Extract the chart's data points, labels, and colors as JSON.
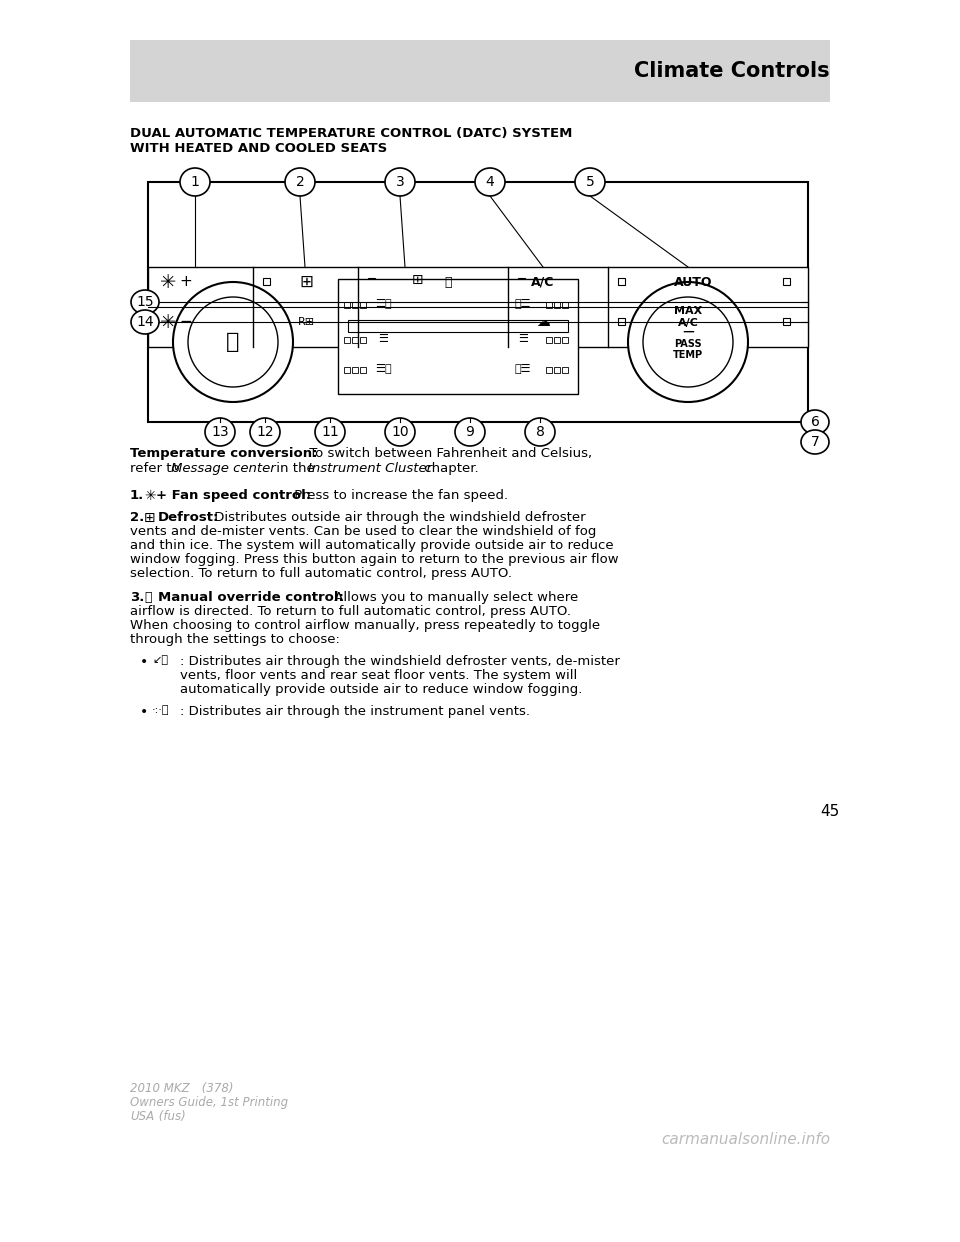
{
  "page_bg": "#ffffff",
  "header_bg": "#d4d4d4",
  "header_text": "Climate Controls",
  "header_text_color": "#000000",
  "section_title_line1": "DUAL AUTOMATIC TEMPERATURE CONTROL (DATC) SYSTEM",
  "section_title_line2": "WITH HEATED AND COOLED SEATS",
  "body_text": [
    {
      "bold_part": "Temperature conversion:",
      "normal_part": " To switch between Fahrenheit and Celsius,\nrefer to ",
      "italic_part1": "Message center",
      "mid_part": " in the ",
      "italic_part2": "Instrument Cluster",
      "end_part": " chapter."
    },
    {
      "number": "1.",
      "bold_part": "",
      "icon": "fan",
      "bold2": " + Fan speed control:",
      "normal_part": " Press to increase the fan speed."
    },
    {
      "number": "2.",
      "icon": "defrost",
      "bold2": " Defrost:",
      "normal_part": " Distributes outside air through the windshield defroster\nvents and de-mister vents. Can be used to clear the windshield of fog\nand thin ice. The system will automatically provide outside air to reduce\nwindow fogging. Press this button again to return to the previous air flow\nselection. To return to full automatic control, press AUTO."
    },
    {
      "number": "3.",
      "icon": "airflow",
      "bold2": " Manual override control:",
      "normal_part": " Allows you to manually select where\nairflow is directed. To return to full automatic control, press AUTO.\nWhen choosing to control airflow manually, press repeatedly to toggle\nthrough the settings to choose:"
    }
  ],
  "bullet_items": [
    {
      "icon": "bullet_icon1",
      "text": ": Distributes air through the windshield defroster vents, de-mister\nvents, floor vents and rear seat floor vents. The system will\nautomatically provide outside air to reduce window fogging."
    },
    {
      "icon": "bullet_icon2",
      "text": ": Distributes air through the instrument panel vents."
    }
  ],
  "page_number": "45",
  "footer_line1": "2010 MKZ",
  "footer_paren1": " (378)",
  "footer_line2": "Owners Guide, 1st Printing",
  "footer_line3": "USA",
  "footer_paren3": " (fus)",
  "watermark": "carmanualsonline.info"
}
